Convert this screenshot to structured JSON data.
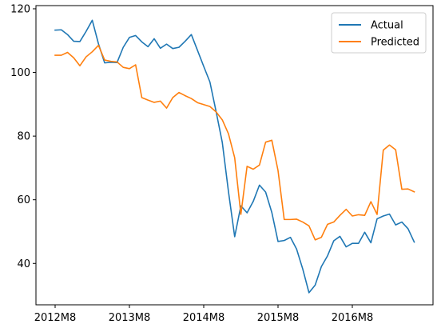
{
  "chart_data": {
    "type": "line",
    "x": [
      "2012M8",
      "2012M9",
      "2012M10",
      "2012M11",
      "2012M12",
      "2013M1",
      "2013M2",
      "2013M3",
      "2013M4",
      "2013M5",
      "2013M6",
      "2013M7",
      "2013M8",
      "2013M9",
      "2013M10",
      "2013M11",
      "2013M12",
      "2014M1",
      "2014M2",
      "2014M3",
      "2014M4",
      "2014M5",
      "2014M6",
      "2014M7",
      "2014M8",
      "2014M9",
      "2014M10",
      "2014M11",
      "2014M12",
      "2015M1",
      "2015M2",
      "2015M3",
      "2015M4",
      "2015M5",
      "2015M6",
      "2015M7",
      "2015M8",
      "2015M9",
      "2015M10",
      "2015M11",
      "2015M12",
      "2016M1",
      "2016M2",
      "2016M3",
      "2016M4",
      "2016M5",
      "2016M6",
      "2016M7",
      "2016M8",
      "2016M9",
      "2016M10",
      "2016M11",
      "2016M12",
      "2017M1",
      "2017M2",
      "2017M3",
      "2017M4",
      "2017M5",
      "2017M6"
    ],
    "xticks": [
      "2012M8",
      "2013M8",
      "2014M8",
      "2015M8",
      "2016M8"
    ],
    "yticks": [
      40,
      60,
      80,
      100,
      120
    ],
    "ylim": [
      27,
      121
    ],
    "xlabel": "",
    "ylabel": "",
    "title": "",
    "grid": false,
    "legend": "top-right",
    "series": [
      {
        "name": "Actual",
        "color": "#1f77b4",
        "values": [
          113.3,
          113.4,
          111.9,
          109.8,
          109.7,
          112.9,
          116.4,
          109.0,
          103.0,
          103.2,
          103.1,
          107.9,
          111.0,
          111.6,
          109.6,
          108.1,
          110.6,
          107.6,
          108.9,
          107.5,
          107.9,
          109.8,
          111.9,
          106.9,
          101.9,
          97.0,
          87.7,
          78.0,
          62.5,
          48.4,
          58.1,
          55.9,
          59.5,
          64.6,
          62.4,
          56.0,
          46.9,
          47.2,
          48.2,
          44.5,
          38.2,
          30.8,
          33.2,
          39.0,
          42.4,
          47.1,
          48.5,
          45.2,
          46.3,
          46.3,
          49.8,
          46.5,
          54.0,
          54.9,
          55.5,
          52.1,
          53.0,
          50.9,
          46.7
        ]
      },
      {
        "name": "Predicted",
        "color": "#ff7f0e",
        "values": [
          105.4,
          105.4,
          106.3,
          104.6,
          102.1,
          104.9,
          106.5,
          108.5,
          103.9,
          103.5,
          103.3,
          101.6,
          101.2,
          102.4,
          92.1,
          91.3,
          90.6,
          91.0,
          88.8,
          92.1,
          93.7,
          92.7,
          91.8,
          90.5,
          89.9,
          89.3,
          87.6,
          85.1,
          80.7,
          73.2,
          55.4,
          70.5,
          69.6,
          70.9,
          78.1,
          78.7,
          69.2,
          53.8,
          53.8,
          53.9,
          53.0,
          51.8,
          47.4,
          48.2,
          52.3,
          53.0,
          55.1,
          57.0,
          54.9,
          55.3,
          55.1,
          59.4,
          55.4,
          75.6,
          77.2,
          75.7,
          63.3,
          63.4,
          62.5
        ]
      }
    ]
  }
}
